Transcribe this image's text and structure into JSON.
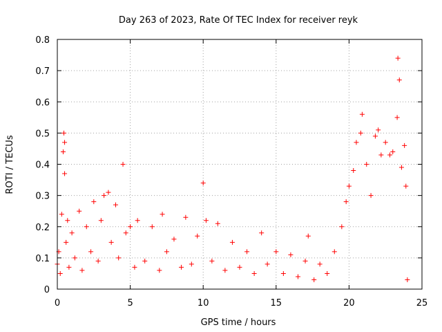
{
  "chart_data": {
    "type": "scatter",
    "title": "Day 263 of 2023, Rate Of TEC Index for receiver reyk",
    "xlabel": "GPS time / hours",
    "ylabel": "ROTI / TECUs",
    "xlim": [
      0,
      25
    ],
    "ylim": [
      0,
      0.8
    ],
    "xticks": [
      0,
      5,
      10,
      15,
      20,
      25
    ],
    "yticks": [
      0,
      0.1,
      0.2,
      0.3,
      0.4,
      0.5,
      0.6,
      0.7,
      0.8
    ],
    "xtick_labels": [
      "0",
      "5",
      "10",
      "15",
      "20",
      "25"
    ],
    "ytick_labels": [
      "0",
      "0.1",
      "0.2",
      "0.3",
      "0.4",
      "0.5",
      "0.6",
      "0.7",
      "0.8"
    ],
    "grid": true,
    "marker": "+",
    "color": "#ff0000",
    "series": [
      {
        "points": [
          [
            0.0,
            0.08
          ],
          [
            0.1,
            0.12
          ],
          [
            0.2,
            0.05
          ],
          [
            0.3,
            0.24
          ],
          [
            0.4,
            0.44
          ],
          [
            0.45,
            0.5
          ],
          [
            0.5,
            0.47
          ],
          [
            0.5,
            0.37
          ],
          [
            0.6,
            0.15
          ],
          [
            0.7,
            0.22
          ],
          [
            0.8,
            0.07
          ],
          [
            1.0,
            0.18
          ],
          [
            1.2,
            0.1
          ],
          [
            1.5,
            0.25
          ],
          [
            1.7,
            0.06
          ],
          [
            2.0,
            0.2
          ],
          [
            2.3,
            0.12
          ],
          [
            2.5,
            0.28
          ],
          [
            2.8,
            0.09
          ],
          [
            3.0,
            0.22
          ],
          [
            3.2,
            0.3
          ],
          [
            3.5,
            0.31
          ],
          [
            3.7,
            0.15
          ],
          [
            4.0,
            0.27
          ],
          [
            4.2,
            0.1
          ],
          [
            4.5,
            0.4
          ],
          [
            4.7,
            0.18
          ],
          [
            5.0,
            0.2
          ],
          [
            5.3,
            0.07
          ],
          [
            5.5,
            0.22
          ],
          [
            6.0,
            0.09
          ],
          [
            6.5,
            0.2
          ],
          [
            7.0,
            0.06
          ],
          [
            7.2,
            0.24
          ],
          [
            7.5,
            0.12
          ],
          [
            8.0,
            0.16
          ],
          [
            8.5,
            0.07
          ],
          [
            8.8,
            0.23
          ],
          [
            9.2,
            0.08
          ],
          [
            9.6,
            0.17
          ],
          [
            10.0,
            0.34
          ],
          [
            10.2,
            0.22
          ],
          [
            10.6,
            0.09
          ],
          [
            11.0,
            0.21
          ],
          [
            11.5,
            0.06
          ],
          [
            12.0,
            0.15
          ],
          [
            12.5,
            0.07
          ],
          [
            13.0,
            0.12
          ],
          [
            13.5,
            0.05
          ],
          [
            14.0,
            0.18
          ],
          [
            14.4,
            0.08
          ],
          [
            15.0,
            0.12
          ],
          [
            15.5,
            0.05
          ],
          [
            16.0,
            0.11
          ],
          [
            16.5,
            0.04
          ],
          [
            17.0,
            0.09
          ],
          [
            17.2,
            0.17
          ],
          [
            17.6,
            0.03
          ],
          [
            18.0,
            0.08
          ],
          [
            18.5,
            0.05
          ],
          [
            19.0,
            0.12
          ],
          [
            19.5,
            0.2
          ],
          [
            19.8,
            0.28
          ],
          [
            20.0,
            0.33
          ],
          [
            20.3,
            0.38
          ],
          [
            20.5,
            0.47
          ],
          [
            20.8,
            0.5
          ],
          [
            20.9,
            0.56
          ],
          [
            21.2,
            0.4
          ],
          [
            21.5,
            0.3
          ],
          [
            21.8,
            0.49
          ],
          [
            22.0,
            0.51
          ],
          [
            22.2,
            0.43
          ],
          [
            22.5,
            0.47
          ],
          [
            22.8,
            0.43
          ],
          [
            23.0,
            0.44
          ],
          [
            23.3,
            0.55
          ],
          [
            23.35,
            0.74
          ],
          [
            23.45,
            0.67
          ],
          [
            23.6,
            0.39
          ],
          [
            23.8,
            0.46
          ],
          [
            23.9,
            0.33
          ],
          [
            24.0,
            0.03
          ]
        ]
      }
    ]
  }
}
